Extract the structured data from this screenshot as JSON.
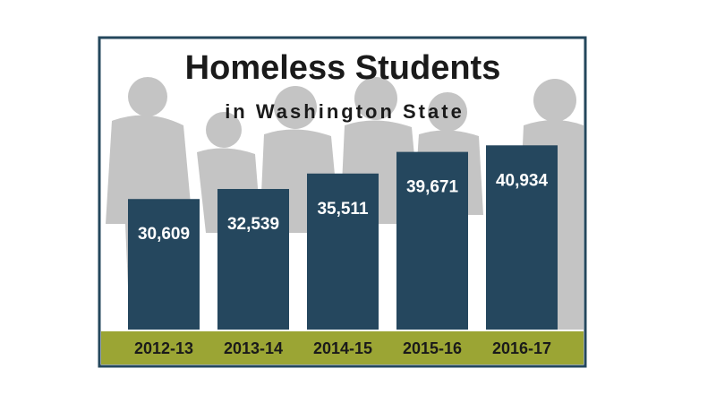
{
  "chart_data": {
    "type": "bar",
    "title": "Homeless Students",
    "subtitle": "in Washington State",
    "categories": [
      "2012-13",
      "2013-14",
      "2014-15",
      "2015-16",
      "2016-17"
    ],
    "values": [
      30609,
      32539,
      35511,
      39671,
      40934
    ],
    "value_labels": [
      "30,609",
      "32,539",
      "35,511",
      "39,671",
      "40,934"
    ],
    "color": "#25475e",
    "ylim": [
      5500,
      41500
    ]
  }
}
